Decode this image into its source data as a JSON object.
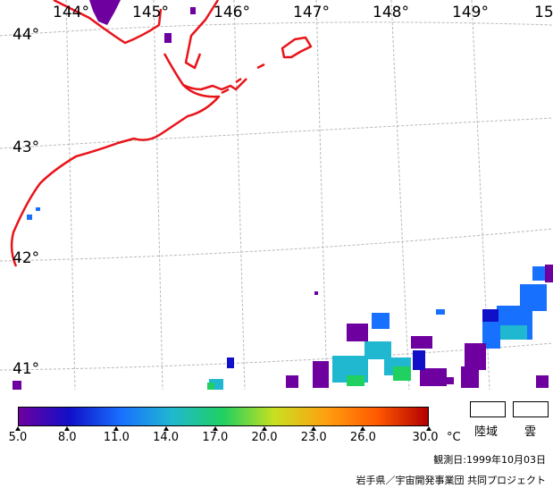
{
  "map": {
    "lon_labels": [
      "144°",
      "145°",
      "146°",
      "147°",
      "148°",
      "149°",
      "15"
    ],
    "lat_labels": [
      "44°",
      "43°",
      "42°",
      "41°"
    ],
    "coastline_color": "#e8141a",
    "grid_color": "#b0b0b0"
  },
  "legend": {
    "ticks": [
      "5.0",
      "8.0",
      "11.0",
      "14.0",
      "17.0",
      "20.0",
      "23.0",
      "26.0",
      "30.0"
    ],
    "unit": "°C",
    "colors": [
      "#6e00a0",
      "#1010c8",
      "#1870ff",
      "#20b8d0",
      "#20d060",
      "#c8e020",
      "#ffa010",
      "#ff5a00",
      "#b40000"
    ],
    "land_label": "陸域",
    "cloud_label": "雲"
  },
  "footer": {
    "observation_date": "観測日:1999年10月03日",
    "credit": "岩手県／宇宙開発事業団  共同プロジェクト"
  }
}
